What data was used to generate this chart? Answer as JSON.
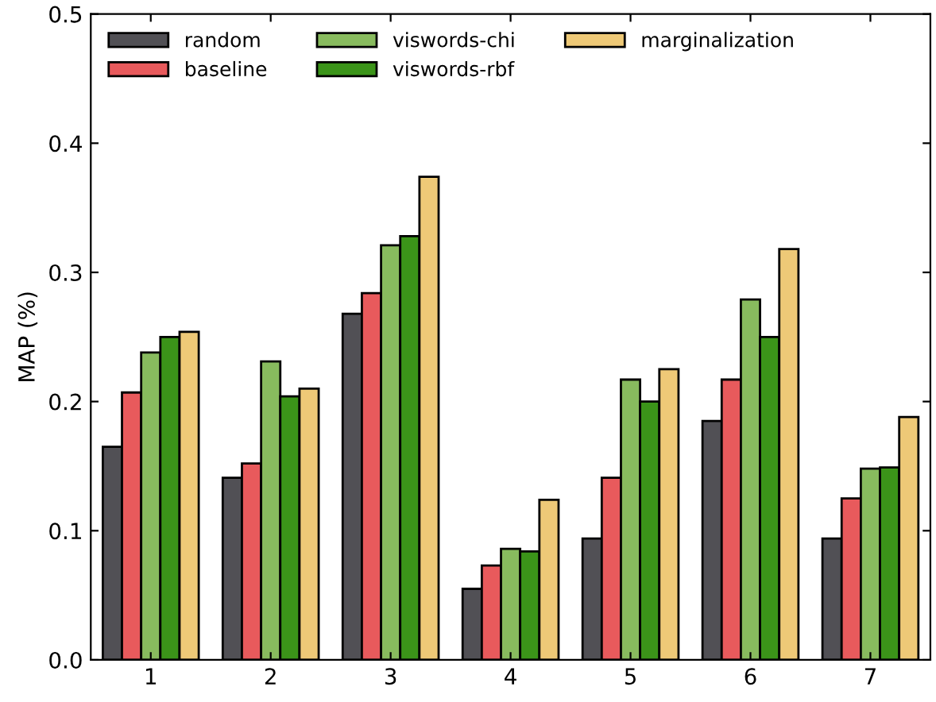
{
  "chart_data": {
    "type": "bar",
    "ylabel": "MAP (%)",
    "categories": [
      "1",
      "2",
      "3",
      "4",
      "5",
      "6",
      "7"
    ],
    "series": [
      {
        "name": "random",
        "color": "#515055",
        "values": [
          0.165,
          0.141,
          0.268,
          0.055,
          0.094,
          0.185,
          0.094
        ]
      },
      {
        "name": "baseline",
        "color": "#e85a5c",
        "values": [
          0.207,
          0.152,
          0.284,
          0.073,
          0.141,
          0.217,
          0.125
        ]
      },
      {
        "name": "viswords-chi",
        "color": "#88bb5e",
        "values": [
          0.238,
          0.231,
          0.321,
          0.086,
          0.217,
          0.279,
          0.148
        ]
      },
      {
        "name": "viswords-rbf",
        "color": "#3b9419",
        "values": [
          0.25,
          0.204,
          0.328,
          0.084,
          0.2,
          0.25,
          0.149
        ]
      },
      {
        "name": "marginalization",
        "color": "#eec977",
        "values": [
          0.254,
          0.21,
          0.374,
          0.124,
          0.225,
          0.318,
          0.188
        ]
      }
    ],
    "ylim": [
      0,
      0.5
    ],
    "yticks": [
      {
        "value": 0,
        "label": "0.0"
      },
      0.1,
      0.2,
      0.3,
      0.4,
      0.5
    ],
    "grid": false,
    "legend": "top left"
  }
}
